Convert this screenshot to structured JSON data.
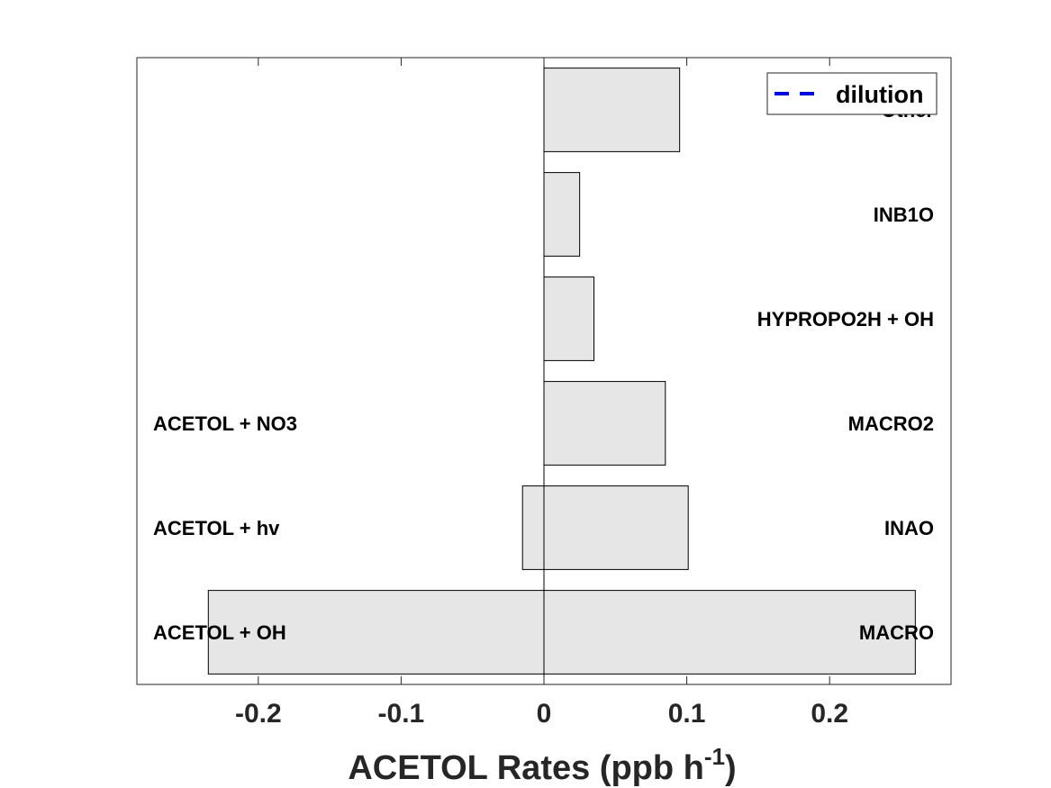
{
  "chart_data": {
    "type": "bar",
    "orientation": "horizontal",
    "xlabel_main": "ACETOL Rates (ppb h",
    "xlabel_sup": "-1",
    "xlabel_close": ")",
    "title": "",
    "ylabel": "",
    "xlim": [
      -0.285,
      0.285
    ],
    "xticks": [
      -0.2,
      -0.1,
      0,
      0.1,
      0.2
    ],
    "xtick_labels": [
      "-0.2",
      "-0.1",
      "0",
      "0.1",
      "0.2"
    ],
    "bar_color": "#e6e6e6",
    "production": [
      {
        "label": "MACRO",
        "value": 0.26
      },
      {
        "label": "INAO",
        "value": 0.101
      },
      {
        "label": "MACRO2",
        "value": 0.085
      },
      {
        "label": "HYPROPO2H + OH",
        "value": 0.035
      },
      {
        "label": "INB1O",
        "value": 0.025
      },
      {
        "label": "Other",
        "value": 0.095
      }
    ],
    "loss": [
      {
        "label": "ACETOL + OH",
        "value": -0.235
      },
      {
        "label": "ACETOL + hv",
        "value": -0.015
      },
      {
        "label": "ACETOL + NO3",
        "value": 0.0
      }
    ],
    "legend": {
      "entries": [
        {
          "name": "dilution",
          "color": "#0000ff",
          "style": "dashed"
        }
      ],
      "position": "top-right"
    },
    "grid": false
  }
}
